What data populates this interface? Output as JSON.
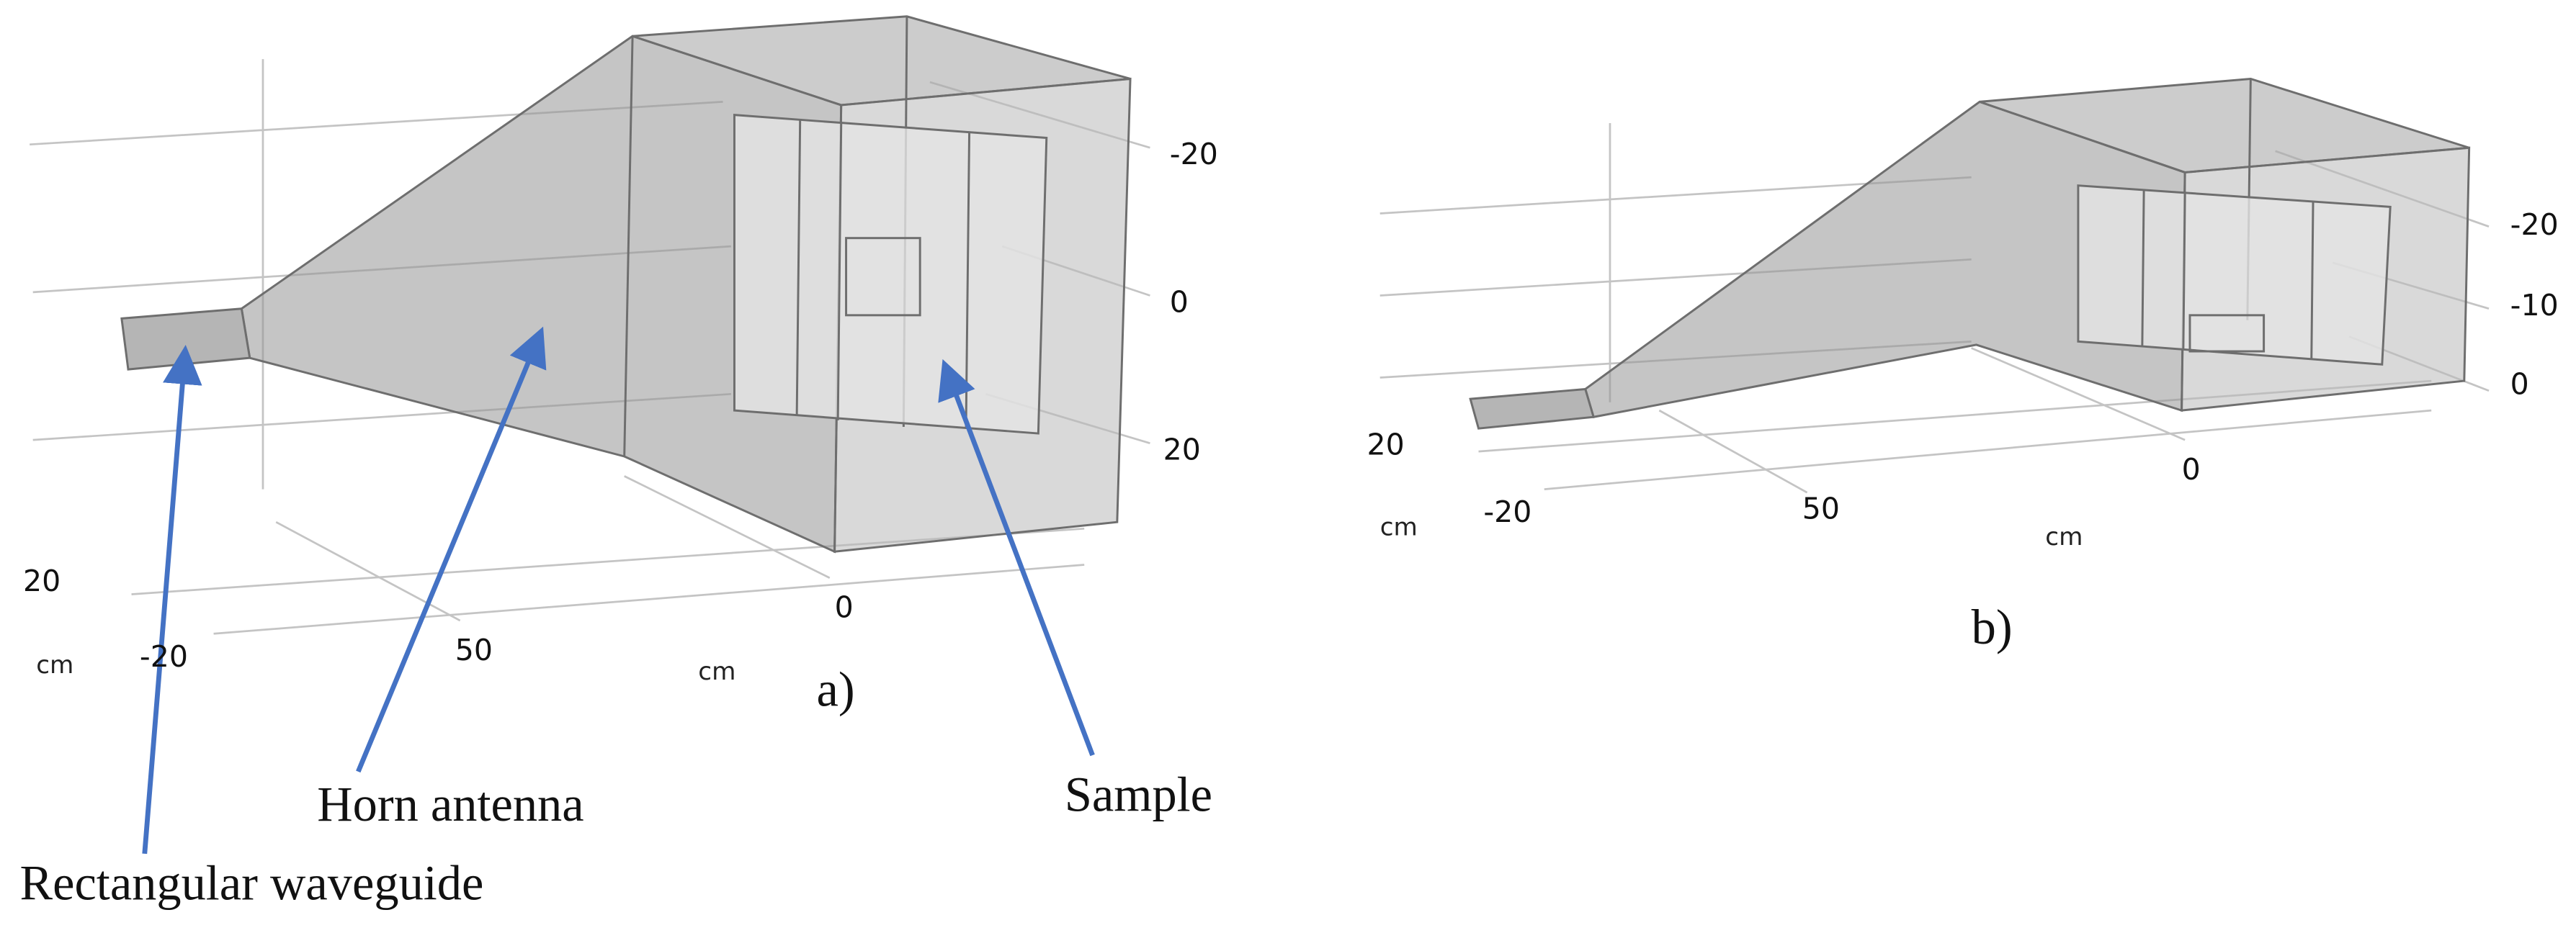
{
  "panels": [
    {
      "label": "a)",
      "axis_labels": [
        "-20",
        "0",
        "20",
        "20",
        "-20",
        "50",
        "0"
      ],
      "units": [
        "cm",
        "cm"
      ],
      "callouts": [
        "Rectangular waveguide",
        "Horn antenna",
        "Sample"
      ]
    },
    {
      "label": "b)",
      "axis_labels": [
        "-20",
        "-10",
        "0",
        "20",
        "-20",
        "50",
        "0"
      ],
      "units": [
        "cm",
        "cm"
      ]
    }
  ]
}
